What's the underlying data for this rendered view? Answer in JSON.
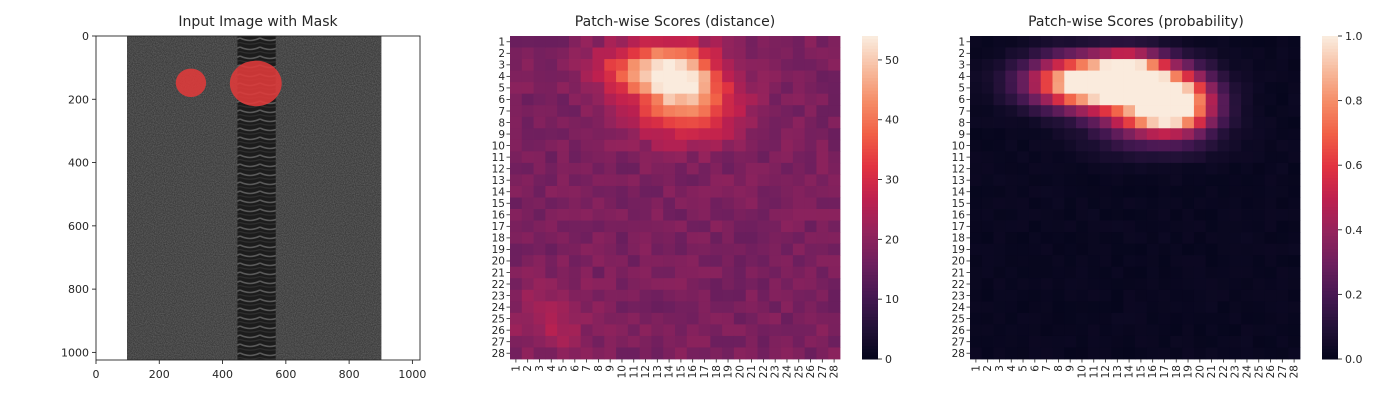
{
  "chart_data": [
    {
      "type": "image",
      "title": "Input Image with Mask",
      "xlim": [
        0,
        1024
      ],
      "ylim": [
        1024,
        0
      ],
      "xticks": [
        0,
        200,
        400,
        600,
        800,
        1000
      ],
      "yticks": [
        0,
        200,
        400,
        600,
        800,
        1000
      ],
      "image": {
        "background": "#ffffff",
        "fabric_color": "#3c3c3c",
        "teeth_color": "#1e1e1e",
        "fabric_x_range": [
          98,
          902
        ],
        "teeth_x_range": [
          447,
          568
        ]
      },
      "mask_color": "#e03a3a",
      "mask_regions": [
        {
          "name": "defect-left",
          "cx": 300,
          "cy": 148,
          "rx": 48,
          "ry": 45
        },
        {
          "name": "defect-right",
          "cx": 505,
          "cy": 150,
          "rx": 82,
          "ry": 72
        }
      ]
    },
    {
      "type": "heatmap",
      "title": "Patch-wise Scores (distance)",
      "rows": 28,
      "cols": 28,
      "tick_labels": [
        "1",
        "2",
        "3",
        "4",
        "5",
        "6",
        "7",
        "8",
        "9",
        "10",
        "11",
        "12",
        "13",
        "14",
        "15",
        "16",
        "17",
        "18",
        "19",
        "20",
        "21",
        "22",
        "23",
        "24",
        "25",
        "26",
        "27",
        "28"
      ],
      "colormap": "rocket",
      "vmin": 0,
      "vmax": 54,
      "colorbar_ticks": [
        0,
        10,
        20,
        30,
        40,
        50
      ],
      "background_level": 18,
      "hotspots": [
        {
          "row": 4,
          "col": 14.5,
          "rs": 1.6,
          "cs": 2.4,
          "amp": 34
        },
        {
          "row": 3.5,
          "col": 10,
          "rs": 1.4,
          "cs": 2.5,
          "amp": 12
        },
        {
          "row": 6.5,
          "col": 16,
          "rs": 1.8,
          "cs": 3.0,
          "amp": 14
        },
        {
          "row": 8,
          "col": 15,
          "rs": 1.6,
          "cs": 3.5,
          "amp": 8
        },
        {
          "row": 25,
          "col": 4,
          "rs": 2.0,
          "cs": 2.2,
          "amp": 7
        },
        {
          "row": 2,
          "col": 14,
          "rs": 1.5,
          "cs": 3.0,
          "amp": 6
        }
      ]
    },
    {
      "type": "heatmap",
      "title": "Patch-wise Scores (probability)",
      "rows": 28,
      "cols": 28,
      "tick_labels": [
        "1",
        "2",
        "3",
        "4",
        "5",
        "6",
        "7",
        "8",
        "9",
        "10",
        "11",
        "12",
        "13",
        "14",
        "15",
        "16",
        "17",
        "18",
        "19",
        "20",
        "21",
        "22",
        "23",
        "24",
        "25",
        "26",
        "27",
        "28"
      ],
      "colormap": "rocket",
      "vmin": 0.0,
      "vmax": 1.0,
      "colorbar_ticks": [
        "0.0",
        "0.2",
        "0.4",
        "0.6",
        "0.8",
        "1.0"
      ],
      "background_level": 0.02,
      "hotspots": [
        {
          "row": 4.5,
          "col": 10,
          "rs": 1.5,
          "cs": 3.2,
          "amp": 0.95
        },
        {
          "row": 5,
          "col": 15,
          "rs": 1.6,
          "cs": 3.2,
          "amp": 0.95
        },
        {
          "row": 6.5,
          "col": 18,
          "rs": 1.5,
          "cs": 2.2,
          "amp": 0.8
        },
        {
          "row": 3,
          "col": 14,
          "rs": 0.9,
          "cs": 1.8,
          "amp": 0.4
        },
        {
          "row": 8,
          "col": 16,
          "rs": 0.9,
          "cs": 3.0,
          "amp": 0.4
        },
        {
          "row": 10,
          "col": 16,
          "rs": 1.0,
          "cs": 4.0,
          "amp": 0.12
        }
      ]
    }
  ]
}
